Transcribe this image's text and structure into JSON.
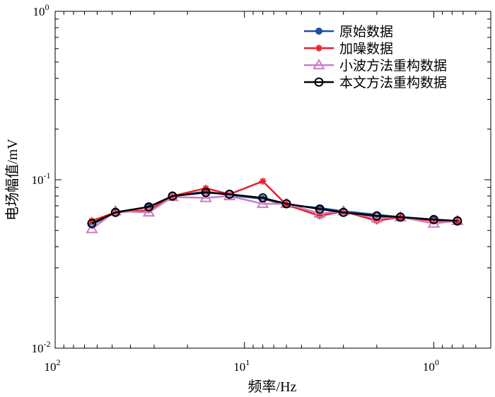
{
  "chart_data": {
    "type": "line",
    "xscale": "log",
    "yscale": "log",
    "x_reversed": true,
    "xlabel": "频率/Hz",
    "ylabel": "电场幅值/mV",
    "xlim": [
      100,
      0.5
    ],
    "ylim": [
      0.01,
      1
    ],
    "xticks": [
      {
        "value": 100,
        "base": "10",
        "exp": "2"
      },
      {
        "value": 10,
        "base": "10",
        "exp": "1"
      },
      {
        "value": 1,
        "base": "10",
        "exp": "0"
      }
    ],
    "yticks": [
      {
        "value": 1,
        "base": "10",
        "exp": "0"
      },
      {
        "value": 0.1,
        "base": "10",
        "exp": "-1"
      },
      {
        "value": 0.01,
        "base": "10",
        "exp": "-2"
      }
    ],
    "grid": false,
    "legend_position": "top-right",
    "x": [
      64,
      48,
      32,
      24,
      16,
      12,
      8,
      6,
      4,
      3,
      2,
      1.5,
      1,
      0.75
    ],
    "series": [
      {
        "name": "原始数据",
        "color": "#1f4ea8",
        "marker": "dot",
        "values": [
          0.054,
          0.064,
          0.069,
          0.08,
          0.085,
          0.081,
          0.077,
          0.071,
          0.068,
          0.065,
          0.062,
          0.06,
          0.058,
          0.056
        ]
      },
      {
        "name": "加噪数据",
        "color": "#e8202a",
        "marker": "asterisk",
        "values": [
          0.057,
          0.064,
          0.066,
          0.08,
          0.089,
          0.082,
          0.098,
          0.071,
          0.061,
          0.065,
          0.057,
          0.06,
          0.057,
          0.057
        ]
      },
      {
        "name": "小波方法重构数据",
        "color": "#c97ec0",
        "marker": "triangle",
        "values": [
          0.051,
          0.065,
          0.064,
          0.079,
          0.078,
          0.08,
          0.072,
          0.072,
          0.063,
          0.065,
          0.059,
          0.06,
          0.055,
          0.057
        ]
      },
      {
        "name": "本文方法重构数据",
        "color": "#000000",
        "marker": "circle",
        "values": [
          0.055,
          0.064,
          0.069,
          0.08,
          0.084,
          0.082,
          0.078,
          0.072,
          0.067,
          0.064,
          0.061,
          0.06,
          0.058,
          0.057
        ]
      }
    ]
  }
}
